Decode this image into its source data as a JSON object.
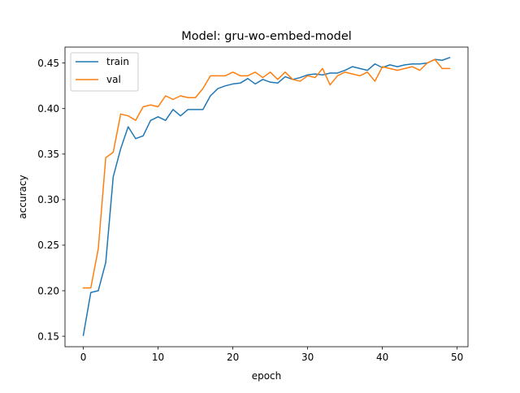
{
  "chart_data": {
    "type": "line",
    "title": "Model: gru-wo-embed-model",
    "xlabel": "epoch",
    "ylabel": "accuracy",
    "xlim": [
      -2.45,
      51.45
    ],
    "ylim": [
      0.1385,
      0.4675
    ],
    "xticks": [
      0,
      10,
      20,
      30,
      40,
      50
    ],
    "xtick_labels": [
      "0",
      "10",
      "20",
      "30",
      "40",
      "50"
    ],
    "yticks": [
      0.15,
      0.2,
      0.25,
      0.3,
      0.35,
      0.4,
      0.45
    ],
    "ytick_labels": [
      "0.15",
      "0.20",
      "0.25",
      "0.30",
      "0.35",
      "0.40",
      "0.45"
    ],
    "grid": false,
    "legend_position": "upper-left",
    "x": [
      0,
      1,
      2,
      3,
      4,
      5,
      6,
      7,
      8,
      9,
      10,
      11,
      12,
      13,
      14,
      15,
      16,
      17,
      18,
      19,
      20,
      21,
      22,
      23,
      24,
      25,
      26,
      27,
      28,
      29,
      30,
      31,
      32,
      33,
      34,
      35,
      36,
      37,
      38,
      39,
      40,
      41,
      42,
      43,
      44,
      45,
      46,
      47,
      48,
      49
    ],
    "series": [
      {
        "name": "train",
        "color": "#1f77b4",
        "values": [
          0.151,
          0.198,
          0.2,
          0.231,
          0.325,
          0.356,
          0.38,
          0.367,
          0.37,
          0.387,
          0.391,
          0.387,
          0.399,
          0.392,
          0.399,
          0.399,
          0.399,
          0.414,
          0.422,
          0.425,
          0.427,
          0.428,
          0.433,
          0.427,
          0.432,
          0.429,
          0.428,
          0.435,
          0.432,
          0.434,
          0.437,
          0.438,
          0.437,
          0.439,
          0.439,
          0.442,
          0.446,
          0.444,
          0.442,
          0.449,
          0.445,
          0.448,
          0.446,
          0.448,
          0.449,
          0.449,
          0.45,
          0.454,
          0.453,
          0.456
        ]
      },
      {
        "name": "val",
        "color": "#ff7f0e",
        "values": [
          0.203,
          0.203,
          0.246,
          0.346,
          0.352,
          0.394,
          0.392,
          0.387,
          0.402,
          0.404,
          0.402,
          0.414,
          0.41,
          0.414,
          0.412,
          0.412,
          0.422,
          0.436,
          0.436,
          0.436,
          0.44,
          0.436,
          0.436,
          0.44,
          0.434,
          0.44,
          0.432,
          0.44,
          0.432,
          0.43,
          0.436,
          0.434,
          0.444,
          0.426,
          0.436,
          0.44,
          0.438,
          0.436,
          0.44,
          0.43,
          0.446,
          0.444,
          0.442,
          0.444,
          0.446,
          0.442,
          0.45,
          0.454,
          0.444,
          0.444
        ]
      }
    ]
  }
}
